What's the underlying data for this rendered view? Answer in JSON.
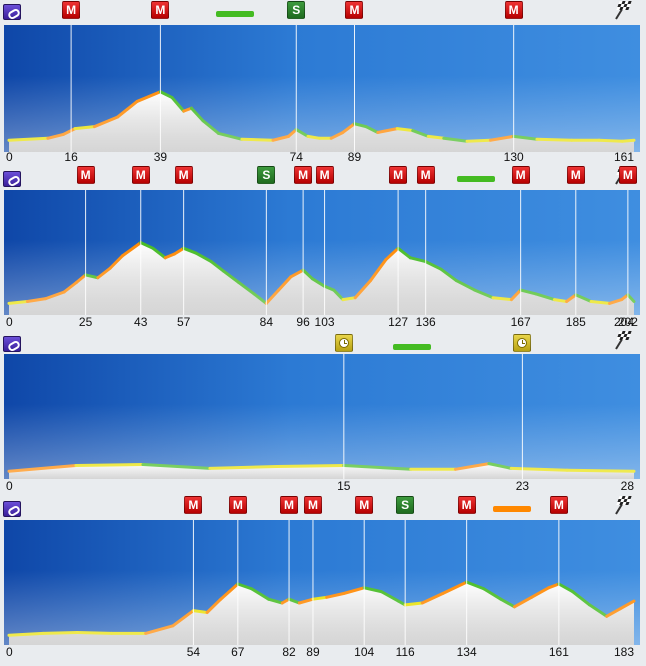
{
  "colors": {
    "sky_dark": "#0f47a8",
    "sky_light": "#3f8ee0",
    "profile_fill": "#f3f3f3",
    "climb_red": "#cc0000",
    "sprint_green": "#1f6b1f",
    "timecheck_yellow": "#d4c21c",
    "flat_edge": "#e8e000",
    "climb_edge": "#ff8800",
    "descent_edge": "#44bb22"
  },
  "icons": {
    "start": "start-icon",
    "finish": "checkered-flag-icon",
    "climb": "mountain-climb-icon",
    "sprint": "intermediate-sprint-icon",
    "timecheck": "time-check-icon"
  },
  "chart_data": [
    {
      "type": "area",
      "xlabel": "",
      "ylabel": "",
      "x_ticks": [
        0,
        16,
        39,
        74,
        89,
        130,
        161
      ],
      "x_range": [
        0,
        161
      ],
      "y_range": [
        0,
        100
      ],
      "profile": [
        [
          0,
          8
        ],
        [
          10,
          10
        ],
        [
          14,
          14
        ],
        [
          17,
          20
        ],
        [
          22,
          22
        ],
        [
          28,
          32
        ],
        [
          33,
          48
        ],
        [
          39,
          58
        ],
        [
          42,
          52
        ],
        [
          45,
          38
        ],
        [
          47,
          41
        ],
        [
          50,
          28
        ],
        [
          54,
          15
        ],
        [
          60,
          9
        ],
        [
          68,
          8
        ],
        [
          72,
          12
        ],
        [
          74,
          19
        ],
        [
          77,
          12
        ],
        [
          80,
          10
        ],
        [
          83,
          10
        ],
        [
          86,
          16
        ],
        [
          89,
          25
        ],
        [
          92,
          22
        ],
        [
          95,
          16
        ],
        [
          100,
          20
        ],
        [
          104,
          18
        ],
        [
          108,
          12
        ],
        [
          112,
          10
        ],
        [
          118,
          7
        ],
        [
          124,
          8
        ],
        [
          130,
          12
        ],
        [
          136,
          9
        ],
        [
          145,
          8
        ],
        [
          152,
          8
        ],
        [
          158,
          7
        ],
        [
          161,
          8
        ]
      ],
      "markers": [
        {
          "type": "climb",
          "label": "M",
          "x": 16
        },
        {
          "type": "climb",
          "label": "M",
          "x": 39
        },
        {
          "type": "sprint_bar",
          "color": "#44bb22",
          "x": 58
        },
        {
          "type": "sprint",
          "label": "S",
          "x": 74
        },
        {
          "type": "climb",
          "label": "M",
          "x": 89
        },
        {
          "type": "climb",
          "label": "M",
          "x": 130
        }
      ]
    },
    {
      "type": "area",
      "xlabel": "",
      "ylabel": "",
      "x_ticks": [
        0,
        25,
        43,
        57,
        84,
        96,
        103,
        127,
        136,
        167,
        185,
        202,
        204
      ],
      "x_range": [
        0,
        204
      ],
      "y_range": [
        0,
        100
      ],
      "profile": [
        [
          0,
          8
        ],
        [
          6,
          10
        ],
        [
          12,
          13
        ],
        [
          18,
          20
        ],
        [
          22,
          30
        ],
        [
          25,
          38
        ],
        [
          29,
          35
        ],
        [
          33,
          45
        ],
        [
          37,
          58
        ],
        [
          43,
          72
        ],
        [
          47,
          66
        ],
        [
          51,
          56
        ],
        [
          54,
          60
        ],
        [
          57,
          66
        ],
        [
          61,
          61
        ],
        [
          66,
          52
        ],
        [
          70,
          42
        ],
        [
          75,
          30
        ],
        [
          80,
          18
        ],
        [
          84,
          8
        ],
        [
          88,
          22
        ],
        [
          92,
          36
        ],
        [
          96,
          43
        ],
        [
          99,
          34
        ],
        [
          103,
          26
        ],
        [
          106,
          22
        ],
        [
          109,
          12
        ],
        [
          113,
          14
        ],
        [
          118,
          32
        ],
        [
          123,
          54
        ],
        [
          127,
          66
        ],
        [
          131,
          56
        ],
        [
          136,
          52
        ],
        [
          141,
          44
        ],
        [
          146,
          32
        ],
        [
          152,
          22
        ],
        [
          158,
          14
        ],
        [
          164,
          12
        ],
        [
          167,
          22
        ],
        [
          172,
          18
        ],
        [
          178,
          12
        ],
        [
          182,
          10
        ],
        [
          185,
          17
        ],
        [
          190,
          10
        ],
        [
          196,
          8
        ],
        [
          200,
          12
        ],
        [
          202,
          17
        ],
        [
          204,
          10
        ]
      ],
      "markers": [
        {
          "type": "climb",
          "label": "M",
          "x": 25
        },
        {
          "type": "climb",
          "label": "M",
          "x": 43
        },
        {
          "type": "climb",
          "label": "M",
          "x": 57
        },
        {
          "type": "sprint",
          "label": "S",
          "x": 84
        },
        {
          "type": "climb",
          "label": "M",
          "x": 96
        },
        {
          "type": "climb",
          "label": "M",
          "x": 103
        },
        {
          "type": "climb",
          "label": "M",
          "x": 127
        },
        {
          "type": "climb",
          "label": "M",
          "x": 136
        },
        {
          "type": "sprint_bar",
          "color": "#44bb22",
          "x": 152
        },
        {
          "type": "climb",
          "label": "M",
          "x": 167
        },
        {
          "type": "climb",
          "label": "M",
          "x": 185
        },
        {
          "type": "climb",
          "label": "M",
          "x": 202
        }
      ]
    },
    {
      "type": "area",
      "xlabel": "",
      "ylabel": "",
      "x_ticks": [
        0,
        15,
        23,
        28
      ],
      "x_range": [
        0,
        28
      ],
      "y_range": [
        0,
        100
      ],
      "profile": [
        [
          0,
          4
        ],
        [
          3,
          10
        ],
        [
          6,
          11
        ],
        [
          9,
          7
        ],
        [
          12,
          9
        ],
        [
          15,
          10
        ],
        [
          18,
          6
        ],
        [
          20,
          6
        ],
        [
          21.5,
          12
        ],
        [
          22.5,
          7
        ],
        [
          25,
          5
        ],
        [
          28,
          4
        ]
      ],
      "markers": [
        {
          "type": "timecheck",
          "x": 15
        },
        {
          "type": "sprint_bar",
          "color": "#44bb22",
          "x": 18
        },
        {
          "type": "timecheck",
          "x": 23
        }
      ]
    },
    {
      "type": "area",
      "xlabel": "",
      "ylabel": "",
      "x_ticks": [
        0,
        54,
        67,
        82,
        89,
        104,
        116,
        134,
        161,
        183
      ],
      "x_range": [
        0,
        183
      ],
      "y_range": [
        0,
        100
      ],
      "profile": [
        [
          0,
          6
        ],
        [
          10,
          8
        ],
        [
          20,
          9
        ],
        [
          30,
          8
        ],
        [
          40,
          8
        ],
        [
          48,
          16
        ],
        [
          54,
          32
        ],
        [
          58,
          30
        ],
        [
          62,
          44
        ],
        [
          67,
          60
        ],
        [
          71,
          55
        ],
        [
          76,
          44
        ],
        [
          80,
          40
        ],
        [
          82,
          44
        ],
        [
          85,
          40
        ],
        [
          89,
          44
        ],
        [
          93,
          46
        ],
        [
          98,
          50
        ],
        [
          104,
          56
        ],
        [
          109,
          52
        ],
        [
          114,
          42
        ],
        [
          116,
          38
        ],
        [
          121,
          40
        ],
        [
          127,
          50
        ],
        [
          134,
          62
        ],
        [
          139,
          55
        ],
        [
          144,
          44
        ],
        [
          148,
          36
        ],
        [
          153,
          46
        ],
        [
          158,
          56
        ],
        [
          161,
          60
        ],
        [
          165,
          52
        ],
        [
          170,
          38
        ],
        [
          175,
          26
        ],
        [
          179,
          34
        ],
        [
          183,
          42
        ]
      ],
      "markers": [
        {
          "type": "climb",
          "label": "M",
          "x": 54
        },
        {
          "type": "climb",
          "label": "M",
          "x": 67
        },
        {
          "type": "climb",
          "label": "M",
          "x": 82
        },
        {
          "type": "climb",
          "label": "M",
          "x": 89
        },
        {
          "type": "climb",
          "label": "M",
          "x": 104
        },
        {
          "type": "sprint",
          "label": "S",
          "x": 116
        },
        {
          "type": "climb",
          "label": "M",
          "x": 134
        },
        {
          "type": "sprint_bar",
          "color": "#ff8800",
          "x": 147
        },
        {
          "type": "climb",
          "label": "M",
          "x": 161
        }
      ]
    }
  ]
}
